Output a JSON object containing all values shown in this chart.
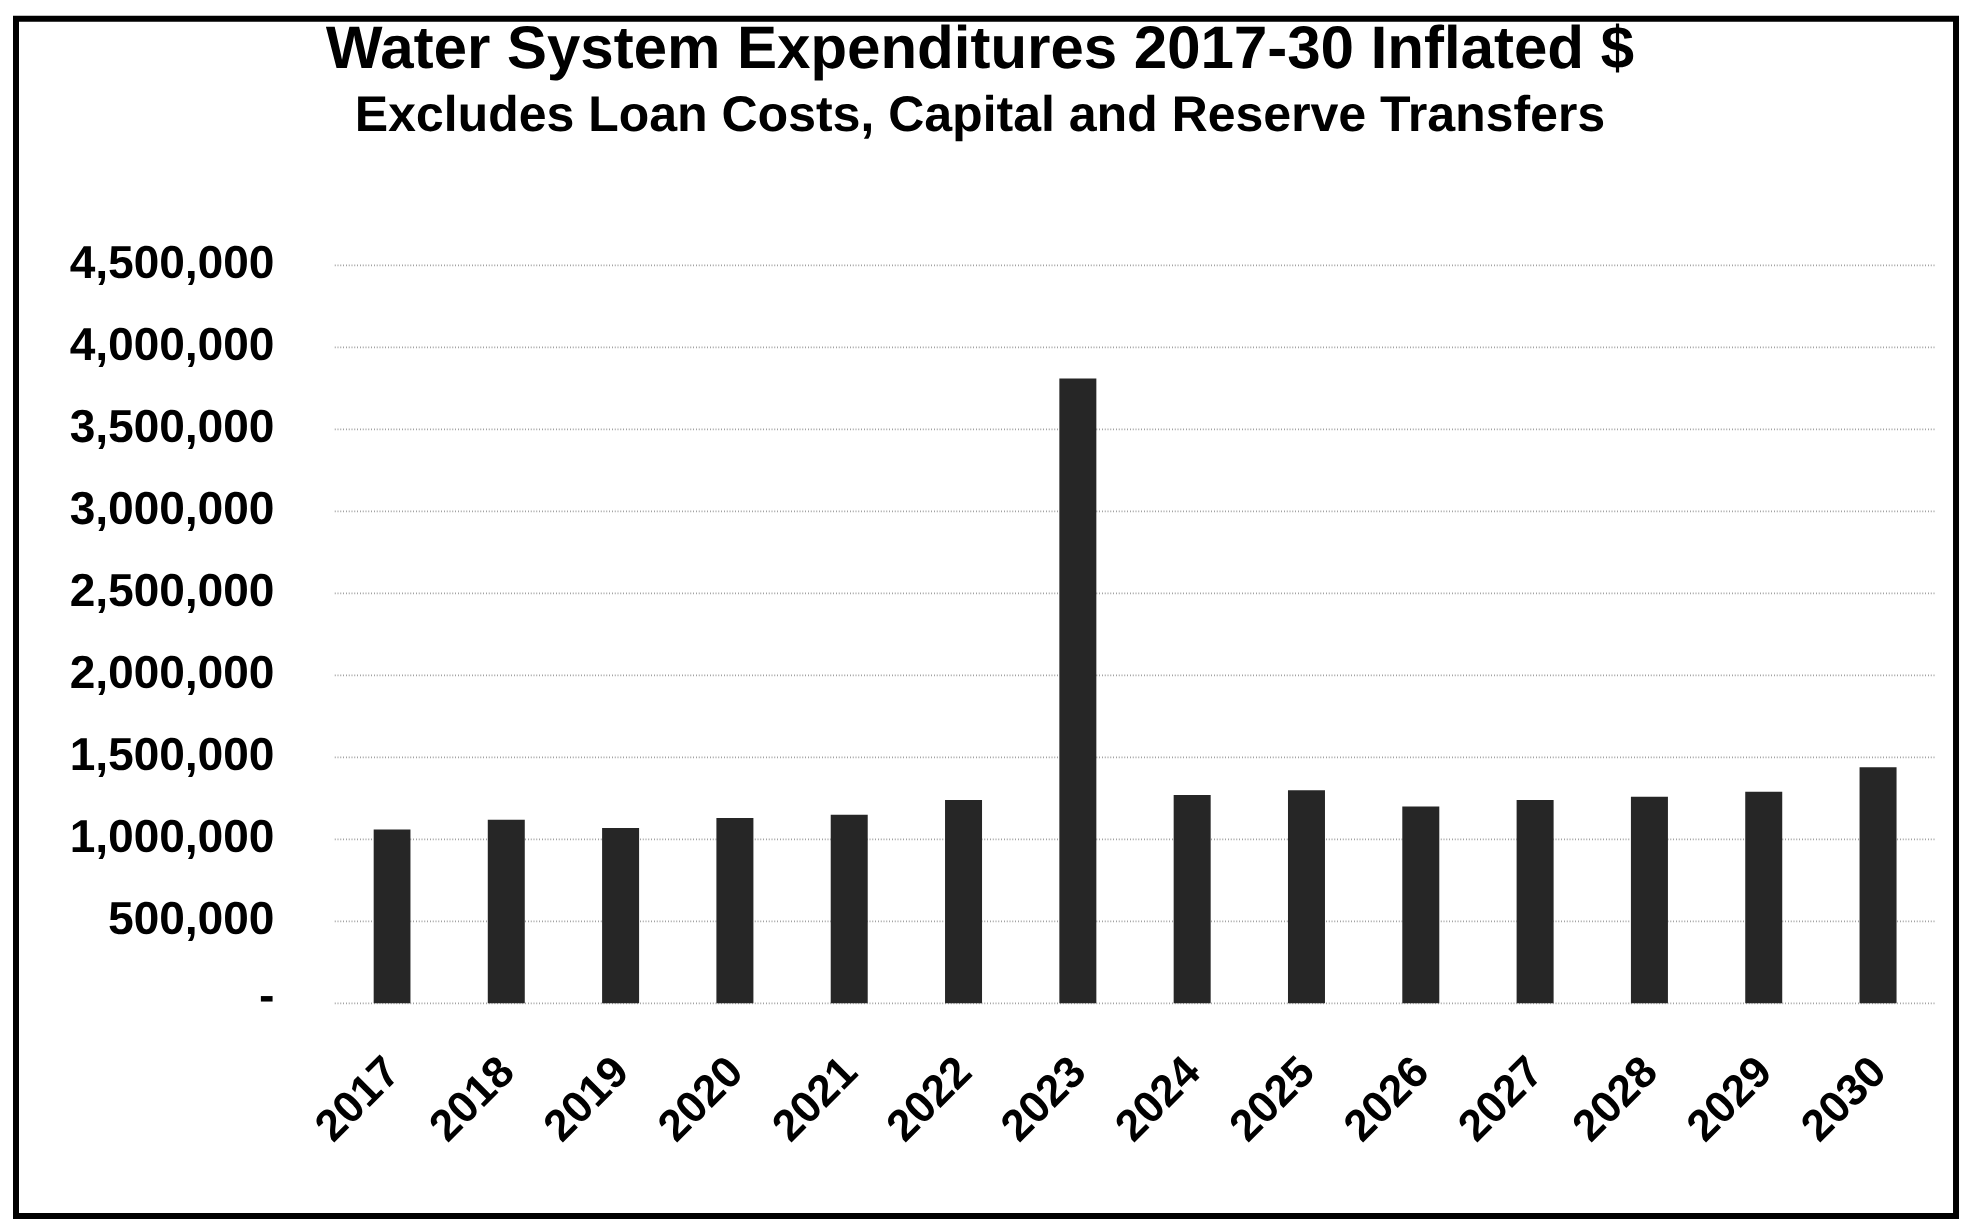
{
  "chart_data": {
    "type": "bar",
    "title": "Water System Expenditures 2017-30 Inflated $",
    "subtitle": "Excludes Loan Costs, Capital and Reserve Transfers",
    "categories": [
      "2017",
      "2018",
      "2019",
      "2020",
      "2021",
      "2022",
      "2023",
      "2024",
      "2025",
      "2026",
      "2027",
      "2028",
      "2029",
      "2030"
    ],
    "values": [
      1060000,
      1120000,
      1070000,
      1130000,
      1150000,
      1240000,
      3810000,
      1270000,
      1300000,
      1200000,
      1240000,
      1260000,
      1290000,
      1440000
    ],
    "color": "#262626",
    "ylim": [
      0,
      4500000
    ],
    "yticks": [
      {
        "value": 0,
        "label": "-"
      },
      {
        "value": 500000,
        "label": "500,000"
      },
      {
        "value": 1000000,
        "label": "1,000,000"
      },
      {
        "value": 1500000,
        "label": "1,500,000"
      },
      {
        "value": 2000000,
        "label": "2,000,000"
      },
      {
        "value": 2500000,
        "label": "2,500,000"
      },
      {
        "value": 3000000,
        "label": "3,000,000"
      },
      {
        "value": 3500000,
        "label": "3,500,000"
      },
      {
        "value": 4000000,
        "label": "4,000,000"
      },
      {
        "value": 4500000,
        "label": "4,500,000"
      }
    ],
    "grid": "y"
  }
}
